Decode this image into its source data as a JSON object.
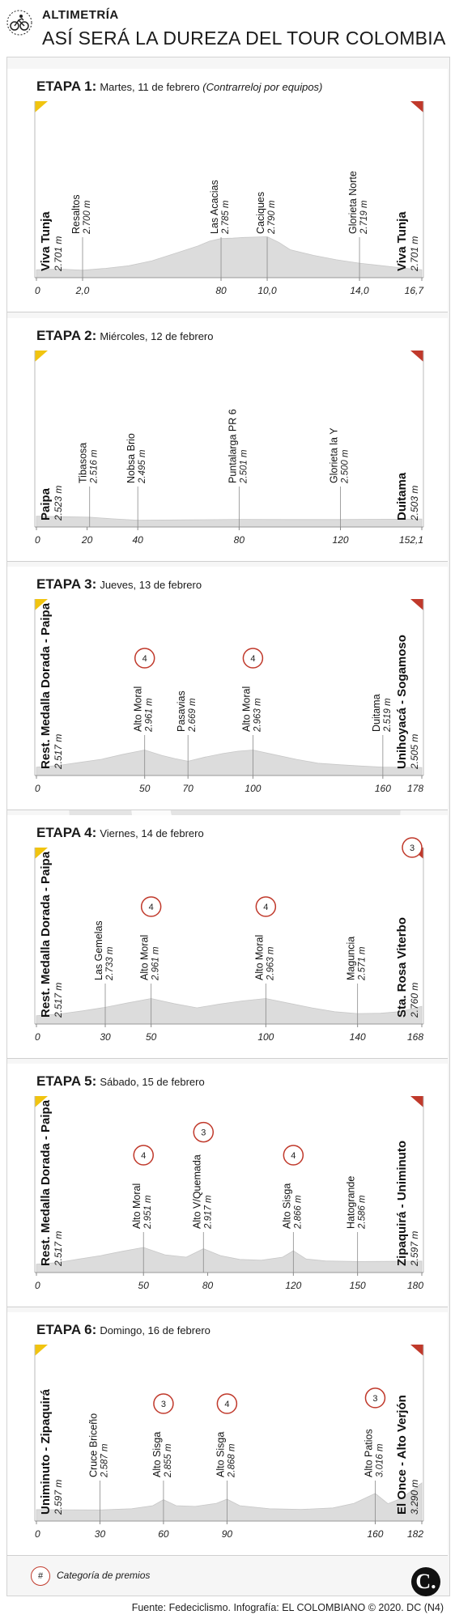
{
  "header": {
    "kicker": "ALTIMETRÍA",
    "headline": "ASÍ SERÁ LA DUREZA DEL TOUR COLOMBIA"
  },
  "legend": {
    "badge": "#",
    "label": "Categoría de premios"
  },
  "footer": {
    "source": "Fuente: Fedeciclismo. Infografía: EL COLOMBIANO © 2020. DC (N4)",
    "logo": "C."
  },
  "colors": {
    "profile_fill": "#dcdcdc",
    "marker_line": "#8a8a8a",
    "category_ring": "#c0392b",
    "start_flag": "#f1c40f",
    "finish_flag": "#c0392b"
  },
  "chart_data": [
    {
      "type": "area",
      "stage_label": "ETAPA 1:",
      "date": "Martes, 11 de febrero",
      "note": "(Contrarreloj por equipos)",
      "x_ticks": [
        "0",
        "2,0",
        "80",
        "10,0",
        "14,0",
        "16,7"
      ],
      "x_max": 16.7,
      "x_note": "distance in km; printed tick '80' stands at 8.0",
      "start": {
        "name": "Viva Tunja",
        "alt": "2.701 m"
      },
      "finish": {
        "name": "Viva Tunja",
        "alt": "2.701 m"
      },
      "waypoints": [
        {
          "name": "Resaltos",
          "alt": "2.700 m",
          "km": 2.0
        },
        {
          "name": "Las Acacias",
          "alt": "2.785 m",
          "km": 8.0
        },
        {
          "name": "Caciques",
          "alt": "2.790 m",
          "km": 10.0
        },
        {
          "name": "Glorieta Norte",
          "alt": "2.719 m",
          "km": 14.0
        }
      ],
      "profile": {
        "x": [
          0,
          1,
          2,
          3,
          4,
          5,
          6,
          7,
          7.5,
          8,
          8.5,
          9,
          9.5,
          10,
          10.5,
          11,
          12,
          13,
          14,
          15,
          16,
          16.7
        ],
        "y": [
          2701,
          2703,
          2700,
          2705,
          2712,
          2725,
          2745,
          2765,
          2778,
          2785,
          2786,
          2788,
          2789,
          2790,
          2775,
          2755,
          2740,
          2728,
          2719,
          2712,
          2705,
          2701
        ]
      },
      "ylim": [
        2680,
        2980
      ]
    },
    {
      "type": "area",
      "stage_label": "ETAPA 2:",
      "date": "Miércoles, 12 de febrero",
      "x_ticks": [
        "0",
        "20",
        "40",
        "80",
        "120",
        "152,1"
      ],
      "x_max": 152.1,
      "start": {
        "name": "Paipa",
        "alt": "2.523 m"
      },
      "finish": {
        "name": "Duitama",
        "alt": "2.503 m"
      },
      "waypoints": [
        {
          "name": "Tibasosa",
          "alt": "2.516 m",
          "km": 21
        },
        {
          "name": "Nobsa Brio",
          "alt": "2.495 m",
          "km": 40
        },
        {
          "name": "Puntalarga PR 6",
          "alt": "2.501 m",
          "km": 80
        },
        {
          "name": "Glorieta la Y",
          "alt": "2.500 m",
          "km": 120
        }
      ],
      "profile": {
        "x": [
          0,
          10,
          21,
          30,
          40,
          60,
          80,
          100,
          120,
          140,
          152.1
        ],
        "y": [
          2523,
          2519,
          2516,
          2505,
          2495,
          2498,
          2501,
          2500,
          2500,
          2502,
          2503
        ]
      },
      "ylim": [
        2450,
        3200
      ]
    },
    {
      "type": "area",
      "stage_label": "ETAPA 3:",
      "date": "Jueves, 13 de febrero",
      "x_ticks": [
        "0",
        "50",
        "70",
        "100",
        "160",
        "178"
      ],
      "x_max": 178,
      "start": {
        "name": "Rest. Medalla Dorada - Paipa",
        "alt": "2.517 m"
      },
      "finish": {
        "name": "Unihoyacá - Sogamoso",
        "alt": "2.505 m"
      },
      "waypoints": [
        {
          "name": "Alto Moral",
          "alt": "2.961 m",
          "km": 50,
          "category": "4"
        },
        {
          "name": "Pasavias",
          "alt": "2.669 m",
          "km": 70
        },
        {
          "name": "Alto Moral",
          "alt": "2.963 m",
          "km": 100,
          "category": "4"
        },
        {
          "name": "Duitama",
          "alt": "2.519 m",
          "km": 160
        }
      ],
      "profile": {
        "x": [
          0,
          10,
          20,
          30,
          40,
          50,
          58,
          64,
          70,
          78,
          86,
          93,
          100,
          110,
          120,
          130,
          140,
          150,
          160,
          170,
          178
        ],
        "y": [
          2517,
          2560,
          2640,
          2720,
          2850,
          2961,
          2820,
          2740,
          2669,
          2780,
          2870,
          2930,
          2963,
          2840,
          2720,
          2620,
          2580,
          2545,
          2519,
          2512,
          2505
        ]
      },
      "ylim": [
        2300,
        5200
      ]
    },
    {
      "type": "area",
      "stage_label": "ETAPA 4:",
      "date": "Viernes, 14 de febrero",
      "x_ticks": [
        "0",
        "30",
        "50",
        "100",
        "140",
        "168"
      ],
      "x_max": 168,
      "start": {
        "name": "Rest. Medalla Dorada - Paipa",
        "alt": "2.517 m"
      },
      "finish": {
        "name": "Sta. Rosa Viterbo",
        "alt": "2.760 m",
        "category": "3"
      },
      "waypoints": [
        {
          "name": "Las Gemelas",
          "alt": "2.733 m",
          "km": 30
        },
        {
          "name": "Alto Moral",
          "alt": "2.961 m",
          "km": 50,
          "category": "4"
        },
        {
          "name": "Alto Moral",
          "alt": "2.963 m",
          "km": 100,
          "category": "4"
        },
        {
          "name": "Maguncia",
          "alt": "2.571 m",
          "km": 140
        }
      ],
      "profile": {
        "x": [
          0,
          10,
          20,
          30,
          40,
          50,
          60,
          70,
          80,
          90,
          100,
          110,
          120,
          130,
          140,
          150,
          158,
          164,
          168
        ],
        "y": [
          2517,
          2560,
          2640,
          2733,
          2850,
          2961,
          2830,
          2720,
          2820,
          2900,
          2963,
          2840,
          2720,
          2620,
          2571,
          2580,
          2620,
          2700,
          2760
        ]
      },
      "ylim": [
        2300,
        5200
      ]
    },
    {
      "type": "area",
      "stage_label": "ETAPA 5:",
      "date": "Sábado, 15 de febrero",
      "x_ticks": [
        "0",
        "50",
        "80",
        "120",
        "150",
        "180"
      ],
      "x_max": 180,
      "start": {
        "name": "Rest. Medalla Dorada - Paipa",
        "alt": "2.517 m"
      },
      "finish": {
        "name": "Zipaquirá - Uniminuto",
        "alt": "2.597 m"
      },
      "waypoints": [
        {
          "name": "Alto Moral",
          "alt": "2.951 m",
          "km": 50,
          "category": "4"
        },
        {
          "name": "Alto V/Quemada",
          "alt": "2.917 m",
          "km": 78,
          "category": "3"
        },
        {
          "name": "Alto Sisga",
          "alt": "2.866 m",
          "km": 120,
          "category": "4"
        },
        {
          "name": "Hatogrande",
          "alt": "2.586 m",
          "km": 150
        }
      ],
      "profile": {
        "x": [
          0,
          10,
          20,
          30,
          40,
          50,
          60,
          70,
          78,
          86,
          95,
          105,
          115,
          120,
          126,
          135,
          150,
          165,
          180
        ],
        "y": [
          2517,
          2560,
          2650,
          2740,
          2850,
          2951,
          2760,
          2700,
          2917,
          2740,
          2640,
          2620,
          2700,
          2866,
          2650,
          2600,
          2586,
          2590,
          2597
        ]
      },
      "ylim": [
        2300,
        5200
      ]
    },
    {
      "type": "area",
      "stage_label": "ETAPA 6:",
      "date": "Domingo, 16 de febrero",
      "x_ticks": [
        "0",
        "30",
        "60",
        "90",
        "160",
        "182"
      ],
      "x_max": 182,
      "start": {
        "name": "Uniminuto - Zipaquirá",
        "alt": "2.597 m"
      },
      "finish": {
        "name": "El Once - Alto Verjón",
        "alt": "3.290 m"
      },
      "waypoints": [
        {
          "name": "Cruce Briceño",
          "alt": "2.587 m",
          "km": 30
        },
        {
          "name": "Alto Sisga",
          "alt": "2.855 m",
          "km": 60,
          "category": "3"
        },
        {
          "name": "Alto Sisga",
          "alt": "2.868 m",
          "km": 90,
          "category": "4"
        },
        {
          "name": "Alto Patios",
          "alt": "3.016 m",
          "km": 160,
          "category": "3"
        }
      ],
      "profile": {
        "x": [
          0,
          15,
          30,
          45,
          55,
          60,
          66,
          75,
          85,
          90,
          96,
          110,
          125,
          140,
          150,
          160,
          166,
          172,
          178,
          182
        ],
        "y": [
          2597,
          2592,
          2587,
          2620,
          2700,
          2855,
          2700,
          2680,
          2760,
          2868,
          2700,
          2620,
          2600,
          2640,
          2760,
          3016,
          2750,
          2880,
          3120,
          3290
        ]
      },
      "ylim": [
        2300,
        5200
      ]
    }
  ]
}
